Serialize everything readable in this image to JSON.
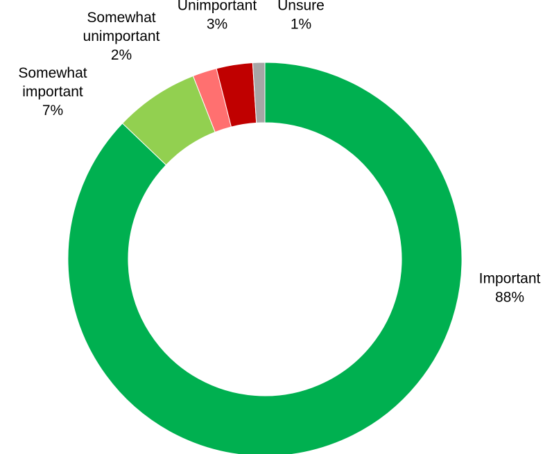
{
  "chart_data": {
    "type": "pie",
    "style": "donut",
    "title": "",
    "slices": [
      {
        "label": "Important",
        "value": 88,
        "display": "88%",
        "color": "#00b050"
      },
      {
        "label": "Somewhat important",
        "value": 7,
        "display": "7%",
        "color": "#92d050"
      },
      {
        "label": "Somewhat unimportant",
        "value": 2,
        "display": "2%",
        "color": "#ff7070"
      },
      {
        "label": "Unimportant",
        "value": 3,
        "display": "3%",
        "color": "#c00000"
      },
      {
        "label": "Unsure",
        "value": 1,
        "display": "1%",
        "color": "#a6a6a6"
      }
    ],
    "legend": "none",
    "data_labels": "outside"
  }
}
